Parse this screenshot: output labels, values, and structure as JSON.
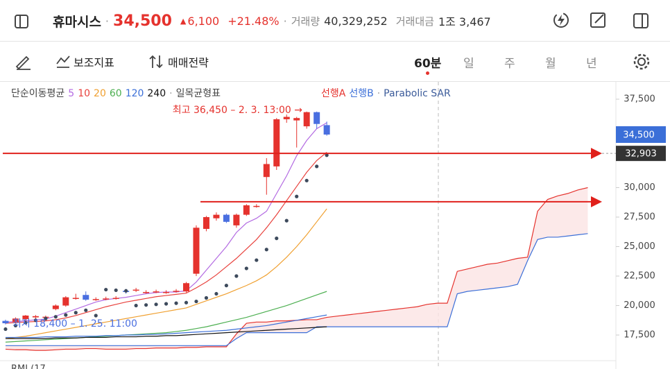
{
  "header": {
    "name": "휴마시스",
    "price": "34,500",
    "change": "6,100",
    "change_pct": "+21.48%",
    "volume_label": "거래량",
    "volume": "40,329,252",
    "amount_label": "거래대금",
    "amount": "1조 3,467"
  },
  "toolbar": {
    "indicators": "보조지표",
    "strategy": "매매전략",
    "periods": [
      "60분",
      "일",
      "주",
      "월",
      "년"
    ],
    "active_period": 0
  },
  "chart_data": {
    "type": "candlestick",
    "legend_ma_label": "단순이동평균",
    "legend_ichimoku_label": "일목균형표",
    "ylim": [
      14620,
      38970
    ],
    "xlim": [
      -0.55,
      60.8
    ],
    "yticks": [
      {
        "value": 17500,
        "label": "17,500"
      },
      {
        "value": 20000,
        "label": "20,000"
      },
      {
        "value": 22500,
        "label": "22,500"
      },
      {
        "value": 25000,
        "label": "25,000"
      },
      {
        "value": 27500,
        "label": "27,500"
      },
      {
        "value": 30000,
        "label": "30,000"
      },
      {
        "value": 37500,
        "label": "37,500"
      }
    ],
    "candles": {
      "up_color": "#e5322d",
      "down_color": "#4a6fe0",
      "open": [
        18700,
        18600,
        18850,
        19000,
        19000,
        19700,
        20000,
        20600,
        20900,
        20500,
        20550,
        20600,
        21250,
        21300,
        21100,
        21150,
        21100,
        21200,
        21200,
        22700,
        26500,
        27400,
        27700,
        26800,
        27700,
        28400,
        30900,
        31800,
        35800,
        35700,
        35200,
        36400,
        35300
      ],
      "high": [
        18800,
        19000,
        19200,
        19200,
        19150,
        20100,
        20800,
        21000,
        21200,
        20700,
        20750,
        20800,
        21400,
        21500,
        21300,
        21350,
        21300,
        21400,
        22000,
        26800,
        27600,
        27900,
        27800,
        27800,
        28600,
        28600,
        32500,
        35900,
        36200,
        36000,
        36450,
        36450,
        35600
      ],
      "low": [
        18400,
        18500,
        18700,
        18900,
        18900,
        19600,
        19900,
        20500,
        20400,
        20400,
        20450,
        20500,
        21000,
        21150,
        21000,
        21050,
        21000,
        21100,
        21100,
        22500,
        26300,
        27200,
        27000,
        26600,
        27600,
        28300,
        29400,
        31500,
        35500,
        33400,
        35000,
        35000,
        34400
      ],
      "close": [
        18500,
        18900,
        19150,
        19100,
        19050,
        20000,
        20700,
        20650,
        20500,
        20550,
        20600,
        20650,
        21150,
        21350,
        21150,
        21200,
        21150,
        21250,
        21900,
        26600,
        27500,
        27700,
        27100,
        27700,
        28500,
        28450,
        32000,
        35800,
        36000,
        35900,
        36400,
        35400,
        34500
      ]
    },
    "series": [
      {
        "name": "5",
        "color": "#b36ae2",
        "values": [
          18600,
          18650,
          18700,
          18800,
          18850,
          19100,
          19400,
          19700,
          20000,
          20300,
          20500,
          20600,
          20700,
          20850,
          21000,
          21100,
          21150,
          21150,
          21250,
          22000,
          23000,
          24000,
          25000,
          26200,
          27000,
          27400,
          28000,
          29500,
          31000,
          32700,
          34000,
          35000,
          35500
        ]
      },
      {
        "name": "10",
        "color": "#e8413c",
        "values": [
          18500,
          18550,
          18600,
          18650,
          18700,
          18800,
          18950,
          19150,
          19400,
          19650,
          19900,
          20100,
          20300,
          20450,
          20600,
          20750,
          20850,
          20950,
          21050,
          21500,
          22000,
          22600,
          23300,
          24000,
          24800,
          25600,
          26600,
          27700,
          28900,
          30100,
          31300,
          32300,
          33000
        ]
      },
      {
        "name": "20",
        "color": "#f0a030",
        "values": [
          17200,
          17300,
          17400,
          17550,
          17700,
          17850,
          18000,
          18150,
          18300,
          18450,
          18600,
          18750,
          18900,
          19050,
          19200,
          19350,
          19500,
          19650,
          19800,
          20100,
          20400,
          20700,
          21000,
          21350,
          21700,
          22100,
          22600,
          23300,
          24100,
          25000,
          26000,
          27100,
          28200
        ]
      },
      {
        "name": "60",
        "color": "#4caf50",
        "values": [
          16900,
          16950,
          17000,
          17050,
          17100,
          17150,
          17200,
          17250,
          17300,
          17350,
          17400,
          17450,
          17500,
          17550,
          17600,
          17650,
          17700,
          17800,
          17900,
          18050,
          18200,
          18400,
          18600,
          18800,
          19000,
          19250,
          19500,
          19750,
          20000,
          20300,
          20600,
          20900,
          21200
        ]
      },
      {
        "name": "120",
        "color": "#3b6fd8",
        "values": [
          17300,
          17300,
          17300,
          17300,
          17350,
          17350,
          17350,
          17400,
          17400,
          17400,
          17450,
          17450,
          17500,
          17500,
          17550,
          17550,
          17600,
          17650,
          17700,
          17750,
          17800,
          17850,
          17900,
          18000,
          18100,
          18200,
          18300,
          18450,
          18600,
          18750,
          18900,
          19050,
          19200
        ]
      },
      {
        "name": "240",
        "color": "#111111",
        "values": [
          17200,
          17200,
          17200,
          17200,
          17200,
          17250,
          17250,
          17250,
          17300,
          17300,
          17300,
          17350,
          17350,
          17350,
          17400,
          17400,
          17450,
          17450,
          17500,
          17550,
          17600,
          17650,
          17700,
          17750,
          17800,
          17850,
          17900,
          17950,
          18000,
          18050,
          18100,
          18150,
          18200
        ]
      }
    ],
    "ichimoku": [
      {
        "name": "선행A",
        "color": "#e5322d",
        "values": [
          16300,
          16250,
          16250,
          16200,
          16200,
          16250,
          16300,
          16300,
          16350,
          16350,
          16300,
          16300,
          16300,
          16350,
          16350,
          16400,
          16400,
          16400,
          16450,
          16450,
          16500,
          16500,
          16500,
          17600,
          18500,
          18600,
          18600,
          18700,
          18700,
          18750,
          18800,
          18800,
          19000,
          19100,
          19200,
          19300,
          19400,
          19500,
          19600,
          19700,
          19800,
          19900,
          20100,
          20200,
          20200,
          22900,
          23100,
          23300,
          23500,
          23600,
          23800,
          24000,
          24100,
          28000,
          29000,
          29300,
          29500,
          29800,
          30000
        ]
      },
      {
        "name": "선행B",
        "color": "#3b6fd8",
        "values": [
          16600,
          16600,
          16600,
          16600,
          16600,
          16600,
          16600,
          16600,
          16600,
          16600,
          16600,
          16600,
          16600,
          16600,
          16600,
          16600,
          16600,
          16600,
          16600,
          16600,
          16600,
          16600,
          16600,
          17200,
          17700,
          17700,
          17700,
          17700,
          17700,
          17700,
          17700,
          18200,
          18200,
          18200,
          18200,
          18200,
          18200,
          18200,
          18200,
          18200,
          18200,
          18200,
          18200,
          18200,
          18200,
          21000,
          21200,
          21300,
          21400,
          21500,
          21600,
          21800,
          23800,
          25600,
          25800,
          25800,
          25900,
          26000,
          26100
        ]
      }
    ],
    "sar": {
      "name": "Parabolic SAR",
      "color": "#3d4a5c",
      "values": [
        18000,
        18300,
        18550,
        18750,
        18900,
        19050,
        19200,
        19400,
        19600,
        19150,
        21350,
        21300,
        21250,
        20000,
        20050,
        20100,
        20150,
        20200,
        20250,
        20350,
        20650,
        21000,
        21700,
        22500,
        23150,
        23850,
        24750,
        25700,
        27200,
        29250,
        30600,
        31800,
        32750
      ]
    },
    "current_price": {
      "value": 34500,
      "label": "34,500"
    },
    "price_lines": [
      {
        "value": 32903,
        "label": "32,903"
      },
      {
        "value": 28800
      }
    ],
    "high_annotation": "최고 36,450 – 2. 3. 13:00 →",
    "low_annotation": "최저 18,400 – 1. 25. 11:00",
    "lower_panel_label": "RMI (17"
  }
}
